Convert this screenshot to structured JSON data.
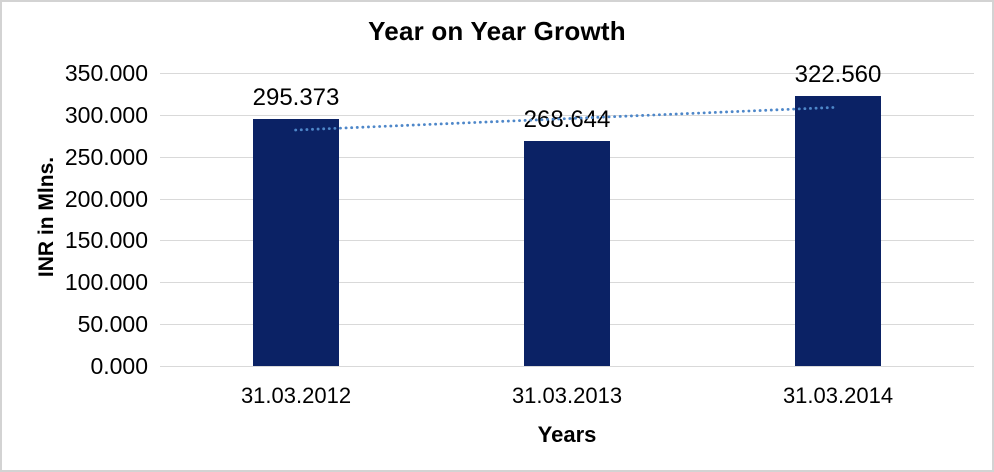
{
  "chart_data": {
    "type": "bar",
    "title": "Year on Year Growth",
    "categories": [
      "31.03.2012",
      "31.03.2013",
      "31.03.2014"
    ],
    "values": [
      295.373,
      268.644,
      322.56
    ],
    "data_labels": [
      "295.373",
      "268.644",
      "322.560"
    ],
    "xlabel": "Years",
    "ylabel": "INR in Mlns.",
    "ylim": [
      0,
      350
    ],
    "ytick_interval": 50,
    "ytick_labels": [
      "0.000",
      "50.000",
      "100.000",
      "150.000",
      "200.000",
      "250.000",
      "300.000",
      "350.000"
    ],
    "grid": true,
    "legend": false,
    "trendline": {
      "type": "linear",
      "style": "dotted",
      "values": [
        281.9,
        295.5,
        309.1
      ]
    },
    "colors": {
      "bar": "#0B2265",
      "trendline": "#4E87C9",
      "gridline": "#D9D9D9",
      "border": "#D3D3D3",
      "text": "#000000",
      "background": "#FFFFFF"
    }
  }
}
